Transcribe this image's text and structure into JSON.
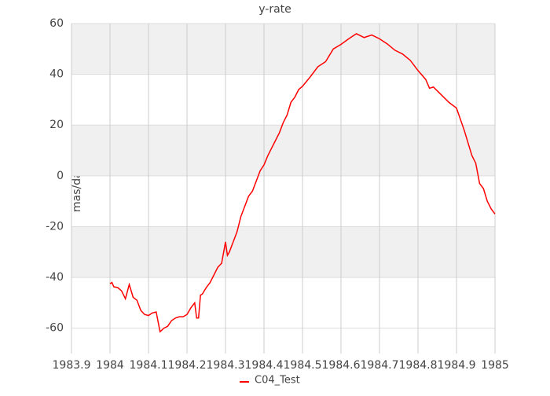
{
  "chart_data": {
    "type": "line",
    "title": "y-rate",
    "y_label": "mas/day",
    "x": [
      1984.0,
      1984.005,
      1984.01,
      1984.02,
      1984.03,
      1984.04,
      1984.05,
      1984.06,
      1984.07,
      1984.08,
      1984.09,
      1984.1,
      1984.11,
      1984.12,
      1984.13,
      1984.14,
      1984.15,
      1984.16,
      1984.17,
      1984.18,
      1984.19,
      1984.2,
      1984.21,
      1984.22,
      1984.225,
      1984.23,
      1984.235,
      1984.24,
      1984.25,
      1984.26,
      1984.27,
      1984.28,
      1984.29,
      1984.3,
      1984.305,
      1984.31,
      1984.32,
      1984.33,
      1984.34,
      1984.35,
      1984.36,
      1984.37,
      1984.38,
      1984.39,
      1984.4,
      1984.41,
      1984.42,
      1984.43,
      1984.44,
      1984.45,
      1984.46,
      1984.47,
      1984.48,
      1984.49,
      1984.5,
      1984.52,
      1984.54,
      1984.56,
      1984.58,
      1984.6,
      1984.62,
      1984.64,
      1984.66,
      1984.68,
      1984.7,
      1984.72,
      1984.74,
      1984.76,
      1984.78,
      1984.8,
      1984.82,
      1984.83,
      1984.84,
      1984.86,
      1984.88,
      1984.9,
      1984.92,
      1984.94,
      1984.95,
      1984.96,
      1984.97,
      1984.98,
      1984.99,
      1985.0
    ],
    "series": [
      {
        "name": "C04_Test",
        "color": "#ff0000",
        "values": [
          -42.5,
          -42,
          -43.7,
          -44,
          -45.3,
          -48.4,
          -42.8,
          -47.8,
          -49,
          -53,
          -54.6,
          -55,
          -54,
          -53.6,
          -61.4,
          -60,
          -59.2,
          -57,
          -56,
          -55.5,
          -55.5,
          -54.6,
          -52,
          -50,
          -56,
          -56,
          -47,
          -46.5,
          -44,
          -42,
          -39,
          -36,
          -34.4,
          -26,
          -31.3,
          -30,
          -26,
          -22,
          -16,
          -12,
          -8,
          -6,
          -2,
          2,
          4.3,
          8,
          11,
          14,
          17,
          21,
          24,
          29,
          31,
          34,
          35.3,
          39,
          43,
          45,
          50,
          51.8,
          54,
          56,
          54.5,
          55.5,
          54,
          52,
          49.5,
          48,
          45.5,
          41.5,
          38,
          34.5,
          35,
          32,
          29,
          26.7,
          18,
          8,
          5,
          -3,
          -5,
          -10,
          -13,
          -15
        ]
      }
    ],
    "xlim": [
      1983.9,
      1985
    ],
    "xticks": [
      1983.9,
      1984,
      1984.1,
      1984.2,
      1984.3,
      1984.4,
      1984.5,
      1984.6,
      1984.7,
      1984.8,
      1984.9,
      1985
    ],
    "ylim": [
      -70,
      60
    ],
    "yticks": [
      -60,
      -40,
      -20,
      0,
      20,
      40,
      60
    ],
    "grid": true,
    "legend": "bottom"
  }
}
